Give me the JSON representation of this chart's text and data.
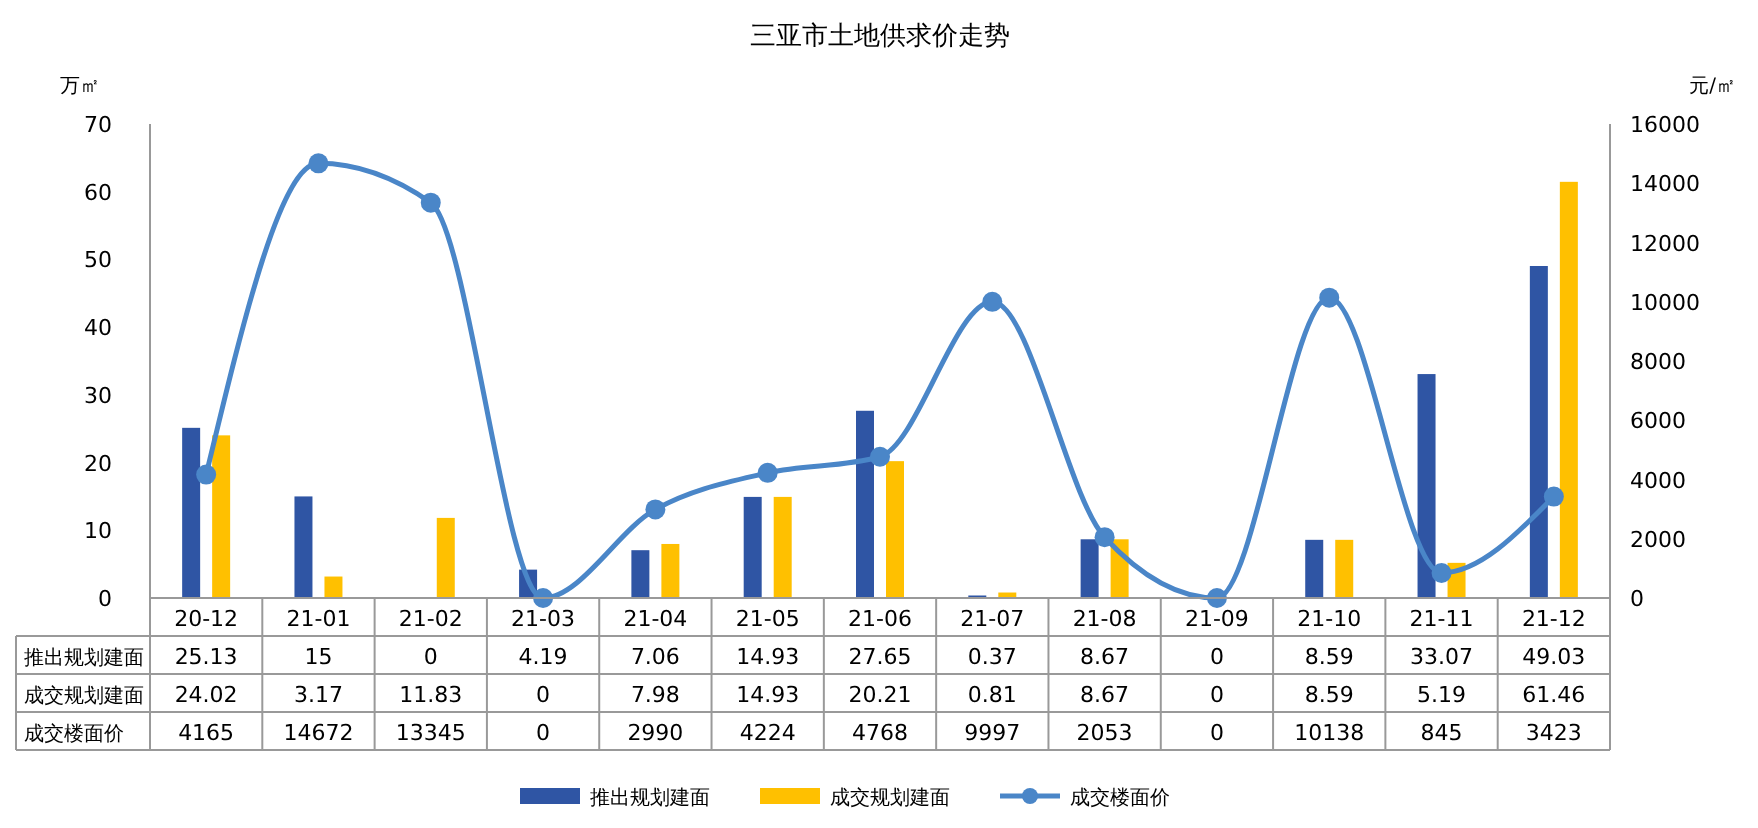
{
  "chart_data": {
    "type": "bar",
    "title": "三亚市土地供求价走势",
    "ylabel": "万㎡",
    "y2label": "元/㎡",
    "categories": [
      "20-12",
      "21-01",
      "21-02",
      "21-03",
      "21-04",
      "21-05",
      "21-06",
      "21-07",
      "21-08",
      "21-09",
      "21-10",
      "21-11",
      "21-12"
    ],
    "series": [
      {
        "name": "推出规划建面",
        "color": "#2f55a4",
        "values": [
          25.13,
          15,
          0,
          4.19,
          7.06,
          14.93,
          27.65,
          0.37,
          8.67,
          0,
          8.59,
          33.07,
          49.03
        ]
      },
      {
        "name": "成交规划建面",
        "color": "#ffc000",
        "values": [
          24.02,
          3.17,
          11.83,
          0,
          7.98,
          14.93,
          20.21,
          0.81,
          8.67,
          0,
          8.59,
          5.19,
          61.46
        ]
      },
      {
        "name": "成交楼面价",
        "type": "line",
        "axis": "y2",
        "color": "#4a86c8",
        "marker": "circle",
        "values": [
          4165,
          14672,
          13345,
          0,
          2990,
          4224,
          4768,
          9997,
          2053,
          0,
          10138,
          845,
          3423
        ]
      }
    ],
    "ylim": [
      0,
      70
    ],
    "yticks": [
      0,
      10,
      20,
      30,
      40,
      50,
      60,
      70
    ],
    "y2lim": [
      0,
      16000
    ],
    "y2ticks": [
      0,
      2000,
      4000,
      6000,
      8000,
      10000,
      12000,
      14000,
      16000
    ],
    "data_labels": true,
    "legend": "bottom",
    "grid": false
  }
}
